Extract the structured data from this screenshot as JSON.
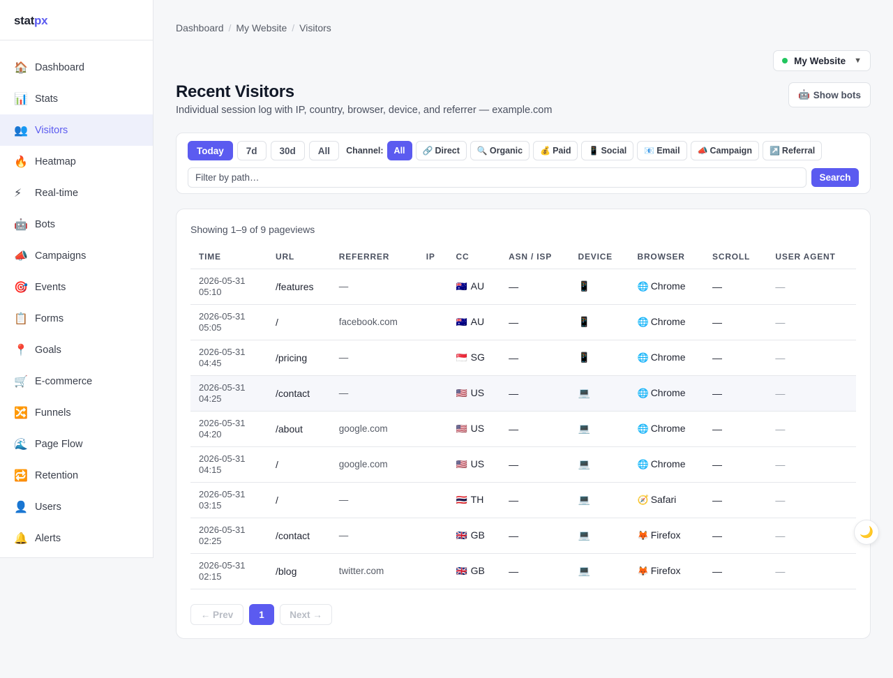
{
  "app": {
    "logo_main": "stat",
    "logo_accent": "px"
  },
  "sidebar": {
    "items": [
      {
        "icon": "🏠",
        "label": "Dashboard"
      },
      {
        "icon": "📊",
        "label": "Stats"
      },
      {
        "icon": "👥",
        "label": "Visitors"
      },
      {
        "icon": "🔥",
        "label": "Heatmap"
      },
      {
        "icon": "⚡",
        "label": "Real-time"
      },
      {
        "icon": "🤖",
        "label": "Bots"
      },
      {
        "icon": "📣",
        "label": "Campaigns"
      },
      {
        "icon": "🎯",
        "label": "Events"
      },
      {
        "icon": "📋",
        "label": "Forms"
      },
      {
        "icon": "📍",
        "label": "Goals"
      },
      {
        "icon": "🛒",
        "label": "E-commerce"
      },
      {
        "icon": "🔀",
        "label": "Funnels"
      },
      {
        "icon": "🌊",
        "label": "Page Flow"
      },
      {
        "icon": "🔁",
        "label": "Retention"
      },
      {
        "icon": "👤",
        "label": "Users"
      },
      {
        "icon": "🔔",
        "label": "Alerts"
      }
    ]
  },
  "breadcrumb": {
    "items": [
      "Dashboard",
      "My Website",
      "Visitors"
    ],
    "separator": "/"
  },
  "site_selector": {
    "label": "My Website",
    "caret": "▼",
    "status_color": "#22c55e"
  },
  "page": {
    "title": "Recent Visitors",
    "subtitle": "Individual session log with IP, country, browser, device, and referrer — example.com",
    "show_bots": {
      "icon": "🤖",
      "label": "Show bots"
    }
  },
  "filters": {
    "ranges": [
      "Today",
      "7d",
      "30d",
      "All"
    ],
    "channel_label": "Channel:",
    "channels": [
      {
        "icon": "",
        "label": "All"
      },
      {
        "icon": "🔗",
        "label": "Direct"
      },
      {
        "icon": "🔍",
        "label": "Organic"
      },
      {
        "icon": "💰",
        "label": "Paid"
      },
      {
        "icon": "📱",
        "label": "Social"
      },
      {
        "icon": "📧",
        "label": "Email"
      },
      {
        "icon": "📣",
        "label": "Campaign"
      },
      {
        "icon": "↗️",
        "label": "Referral"
      }
    ],
    "path_placeholder": "Filter by path…",
    "search_label": "Search"
  },
  "table": {
    "showing": "Showing 1–9 of 9 pageviews",
    "columns": [
      "TIME",
      "URL",
      "REFERRER",
      "IP",
      "CC",
      "ASN / ISP",
      "DEVICE",
      "BROWSER",
      "SCROLL",
      "USER AGENT"
    ],
    "rows": [
      {
        "date": "2026-05-31",
        "time": "05:10",
        "url": "/features",
        "referrer": "—",
        "ip": "",
        "flag": "🇦🇺",
        "cc": "AU",
        "asn": "—",
        "device": "📱",
        "browser_icon": "🌐",
        "browser": "Chrome",
        "scroll": "—",
        "ua": "—"
      },
      {
        "date": "2026-05-31",
        "time": "05:05",
        "url": "/",
        "referrer": "facebook.com",
        "ip": "",
        "flag": "🇦🇺",
        "cc": "AU",
        "asn": "—",
        "device": "📱",
        "browser_icon": "🌐",
        "browser": "Chrome",
        "scroll": "—",
        "ua": "—"
      },
      {
        "date": "2026-05-31",
        "time": "04:45",
        "url": "/pricing",
        "referrer": "—",
        "ip": "",
        "flag": "🇸🇬",
        "cc": "SG",
        "asn": "—",
        "device": "📱",
        "browser_icon": "🌐",
        "browser": "Chrome",
        "scroll": "—",
        "ua": "—"
      },
      {
        "date": "2026-05-31",
        "time": "04:25",
        "url": "/contact",
        "referrer": "—",
        "ip": "",
        "flag": "🇺🇸",
        "cc": "US",
        "asn": "—",
        "device": "💻",
        "browser_icon": "🌐",
        "browser": "Chrome",
        "scroll": "—",
        "ua": "—"
      },
      {
        "date": "2026-05-31",
        "time": "04:20",
        "url": "/about",
        "referrer": "google.com",
        "ip": "",
        "flag": "🇺🇸",
        "cc": "US",
        "asn": "—",
        "device": "💻",
        "browser_icon": "🌐",
        "browser": "Chrome",
        "scroll": "—",
        "ua": "—"
      },
      {
        "date": "2026-05-31",
        "time": "04:15",
        "url": "/",
        "referrer": "google.com",
        "ip": "",
        "flag": "🇺🇸",
        "cc": "US",
        "asn": "—",
        "device": "💻",
        "browser_icon": "🌐",
        "browser": "Chrome",
        "scroll": "—",
        "ua": "—"
      },
      {
        "date": "2026-05-31",
        "time": "03:15",
        "url": "/",
        "referrer": "—",
        "ip": "",
        "flag": "🇹🇭",
        "cc": "TH",
        "asn": "—",
        "device": "💻",
        "browser_icon": "🧭",
        "browser": "Safari",
        "scroll": "—",
        "ua": "—"
      },
      {
        "date": "2026-05-31",
        "time": "02:25",
        "url": "/contact",
        "referrer": "—",
        "ip": "",
        "flag": "🇬🇧",
        "cc": "GB",
        "asn": "—",
        "device": "💻",
        "browser_icon": "🦊",
        "browser": "Firefox",
        "scroll": "—",
        "ua": "—"
      },
      {
        "date": "2026-05-31",
        "time": "02:15",
        "url": "/blog",
        "referrer": "twitter.com",
        "ip": "",
        "flag": "🇬🇧",
        "cc": "GB",
        "asn": "—",
        "device": "💻",
        "browser_icon": "🦊",
        "browser": "Firefox",
        "scroll": "—",
        "ua": "—"
      }
    ]
  },
  "pagination": {
    "prev": "← Prev",
    "current": "1",
    "next": "Next →"
  },
  "theme_toggle": {
    "icon": "🌙"
  },
  "colors": {
    "accent": "#5b5bf0",
    "active_bg": "#eef0fb"
  }
}
